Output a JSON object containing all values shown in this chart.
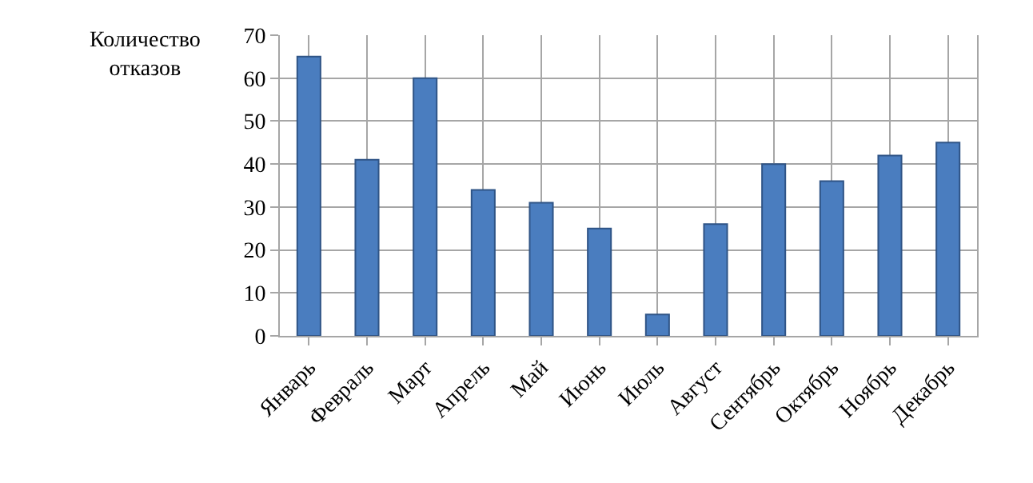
{
  "chart_data": {
    "type": "bar",
    "ylabel": "Количество отказов",
    "categories": [
      "Январь",
      "Февраль",
      "Март",
      "Апрель",
      "Май",
      "Июнь",
      "Июль",
      "Август",
      "Сентябрь",
      "Октябрь",
      "Ноябрь",
      "Декабрь"
    ],
    "values": [
      65,
      41,
      60,
      34,
      31,
      25,
      5,
      26,
      40,
      36,
      42,
      45
    ],
    "color": "#4a7dbf",
    "ylim": [
      0,
      70
    ],
    "yticks": [
      0,
      10,
      20,
      30,
      40,
      50,
      60,
      70
    ],
    "grid": true,
    "legend": false
  }
}
